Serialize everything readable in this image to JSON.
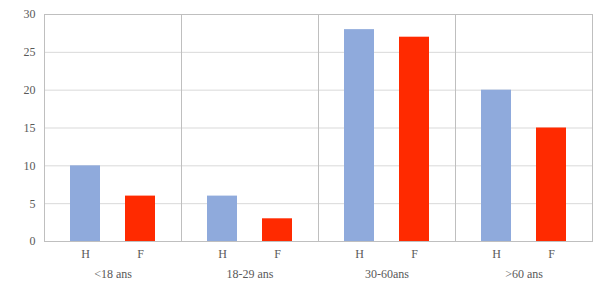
{
  "chart_data": {
    "type": "bar",
    "categories": [
      "<18 ans",
      "18-29 ans",
      "30-60ans",
      ">60 ans"
    ],
    "series": [
      {
        "name": "H",
        "color": "#8faadc",
        "values": [
          10,
          6,
          28,
          20
        ]
      },
      {
        "name": "F",
        "color": "#ff2a00",
        "values": [
          6,
          3,
          27,
          15
        ]
      }
    ],
    "ylim": [
      0,
      30
    ],
    "yticks": [
      0,
      5,
      10,
      15,
      20,
      25,
      30
    ],
    "grid": true
  }
}
